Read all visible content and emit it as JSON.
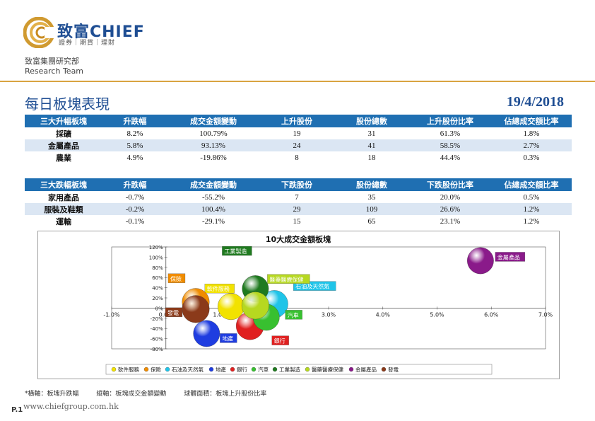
{
  "brand": {
    "name": "致富CHIEF",
    "tagline": "證券｜期貨｜理財"
  },
  "team": {
    "cn": "致富集團研究部",
    "en": "Research Team"
  },
  "header": {
    "title": "每日板塊表現",
    "date": "19/4/2018"
  },
  "gainers": {
    "headers": [
      "三大升幅板塊",
      "升跌幅",
      "成交金額變動",
      "上升股份",
      "股份總數",
      "上升股份比率",
      "佔總成交額比率"
    ],
    "rows": [
      [
        "採礦",
        "8.2%",
        "100.79%",
        "19",
        "31",
        "61.3%",
        "1.8%"
      ],
      [
        "金屬產品",
        "5.8%",
        "93.13%",
        "24",
        "41",
        "58.5%",
        "2.7%"
      ],
      [
        "農業",
        "4.9%",
        "-19.86%",
        "8",
        "18",
        "44.4%",
        "0.3%"
      ]
    ]
  },
  "losers": {
    "headers": [
      "三大跌幅板塊",
      "升跌幅",
      "成交金額變動",
      "下跌股份",
      "股份總數",
      "下跌股份比率",
      "佔總成交額比率"
    ],
    "rows": [
      [
        "家用產品",
        "-0.7%",
        "-55.2%",
        "7",
        "35",
        "20.0%",
        "0.5%"
      ],
      [
        "服裝及鞋類",
        "-0.2%",
        "100.4%",
        "29",
        "109",
        "26.6%",
        "1.2%"
      ],
      [
        "運輸",
        "-0.1%",
        "-29.1%",
        "15",
        "65",
        "23.1%",
        "1.2%"
      ]
    ]
  },
  "chart_data": {
    "type": "scatter",
    "title": "10大成交金額板塊",
    "xlim": [
      -0.01,
      0.07
    ],
    "ylim": [
      -0.8,
      1.2
    ],
    "xticks": [
      "-1.0%",
      "0.0%",
      "1.0%",
      "2.0%",
      "3.0%",
      "4.0%",
      "5.0%",
      "6.0%",
      "7.0%"
    ],
    "yticks": [
      "120%",
      "100%",
      "80%",
      "60%",
      "40%",
      "20%",
      "0%",
      "-20%",
      "-40%",
      "-60%",
      "-80%"
    ],
    "legend_position": "bottom",
    "series": [
      {
        "name": "軟件服務",
        "x": 0.012,
        "y": 0.03,
        "size": 0.45,
        "color": "#f2e200"
      },
      {
        "name": "保險",
        "x": 0.0055,
        "y": 0.12,
        "size": 0.55,
        "color": "#f08c00"
      },
      {
        "name": "石油及天然氣",
        "x": 0.02,
        "y": 0.08,
        "size": 0.55,
        "color": "#20c4e8"
      },
      {
        "name": "地產",
        "x": 0.0075,
        "y": -0.5,
        "size": 0.45,
        "color": "#1f3de0"
      },
      {
        "name": "銀行",
        "x": 0.0155,
        "y": -0.35,
        "size": 0.6,
        "color": "#e02020"
      },
      {
        "name": "汽車",
        "x": 0.0185,
        "y": -0.18,
        "size": 0.45,
        "color": "#38c030"
      },
      {
        "name": "工業製造",
        "x": 0.0165,
        "y": 0.38,
        "size": 0.45,
        "color": "#1f7a1f"
      },
      {
        "name": "醫藥醫療保健",
        "x": 0.0165,
        "y": 0.05,
        "size": 0.55,
        "color": "#b6d820"
      },
      {
        "name": "金屬產品",
        "x": 0.058,
        "y": 0.93,
        "size": 0.45,
        "color": "#8a1a8a"
      },
      {
        "name": "發電",
        "x": 0.0055,
        "y": -0.02,
        "size": 0.55,
        "color": "#8b3a1a"
      }
    ]
  },
  "footer": {
    "notes": [
      "*橫軸：板塊升跌幅",
      "縱軸：板塊成交金額變動",
      "球體面積：板塊上升股份比率"
    ],
    "page": "P.1",
    "website": "www.chiefgroup.com.hk"
  }
}
